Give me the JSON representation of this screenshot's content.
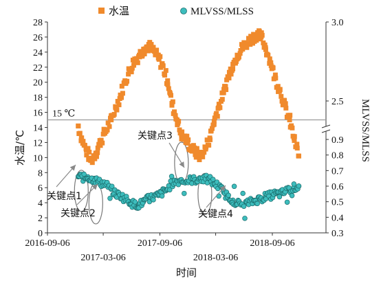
{
  "chart_data": {
    "type": "scatter",
    "xlabel": "时间",
    "x_ticks": [
      "2016-09-06",
      "2017-03-06",
      "2017-09-06",
      "2018-03-06",
      "2018-09-06"
    ],
    "y_left": {
      "label": "水温/℃",
      "range": [
        0,
        28
      ],
      "ticks": [
        "0",
        "2",
        "4",
        "6",
        "8",
        "10",
        "12",
        "14",
        "16",
        "18",
        "20",
        "22",
        "24",
        "26",
        "28"
      ]
    },
    "y_right": {
      "label": "MLVSS/MLSS",
      "broken_axis": true,
      "lower_ticks": [
        "0.3",
        "0.4",
        "0.5",
        "0.6",
        "0.7",
        "0.8",
        "0.9"
      ],
      "upper_ticks": [
        "2.5",
        "3.0"
      ]
    },
    "reference_line": {
      "label": "15 ℃",
      "value": 15
    },
    "legend": [
      {
        "name": "水温",
        "marker": "square",
        "color": "#F08A2C"
      },
      {
        "name": "MLVSS/MLSS",
        "marker": "circle",
        "color": "#3DBDBD"
      }
    ],
    "annotations": [
      {
        "label": "关键点1",
        "x": "2016-12-25",
        "y": 0.57
      },
      {
        "label": "关键点2",
        "x": "2017-02-10",
        "y": 0.49
      },
      {
        "label": "关键点3",
        "x": "2017-11-15",
        "y": 0.75
      },
      {
        "label": "关键点4",
        "x": "2018-01-30",
        "y": 0.55
      }
    ],
    "series": [
      {
        "name": "水温",
        "x": [
          "2016-12-15",
          "2016-12-25",
          "2017-01-10",
          "2017-01-25",
          "2017-02-10",
          "2017-02-25",
          "2017-03-15",
          "2017-04-01",
          "2017-04-15",
          "2017-05-01",
          "2017-05-15",
          "2017-06-01",
          "2017-06-15",
          "2017-07-01",
          "2017-07-15",
          "2017-08-01",
          "2017-08-15",
          "2017-09-01",
          "2017-09-15",
          "2017-10-01",
          "2017-10-15",
          "2017-11-01",
          "2017-11-15",
          "2017-12-01",
          "2017-12-15",
          "2018-01-01",
          "2018-01-15",
          "2018-02-01",
          "2018-02-15",
          "2018-03-01",
          "2018-03-15",
          "2018-04-01",
          "2018-04-15",
          "2018-05-01",
          "2018-05-15",
          "2018-06-01",
          "2018-06-15",
          "2018-07-01",
          "2018-07-15",
          "2018-08-01",
          "2018-08-15",
          "2018-09-01",
          "2018-09-15",
          "2018-10-01",
          "2018-10-15",
          "2018-11-01",
          "2018-11-15",
          "2018-12-01"
        ],
        "values": [
          14.2,
          12.6,
          11.0,
          9.6,
          10.6,
          12.1,
          13.6,
          15.0,
          16.6,
          18.2,
          20.0,
          21.6,
          22.8,
          23.6,
          24.4,
          24.8,
          24.2,
          23.2,
          22.2,
          20.2,
          17.2,
          15.0,
          13.0,
          12.3,
          11.4,
          10.6,
          10.2,
          11.2,
          12.6,
          14.8,
          16.6,
          18.6,
          20.6,
          22.4,
          23.6,
          24.6,
          25.2,
          25.8,
          26.3,
          26.0,
          24.6,
          22.6,
          20.6,
          19.0,
          17.0,
          15.0,
          12.6,
          10.2
        ]
      },
      {
        "name": "MLVSS/MLSS",
        "x": [
          "2016-12-15",
          "2016-12-25",
          "2017-01-05",
          "2017-01-15",
          "2017-01-25",
          "2017-02-05",
          "2017-02-15",
          "2017-02-25",
          "2017-03-05",
          "2017-03-15",
          "2017-04-01",
          "2017-04-15",
          "2017-05-01",
          "2017-05-15",
          "2017-06-01",
          "2017-06-15",
          "2017-07-01",
          "2017-07-15",
          "2017-08-01",
          "2017-08-15",
          "2017-09-01",
          "2017-09-15",
          "2017-10-01",
          "2017-10-15",
          "2017-11-01",
          "2017-11-15",
          "2017-12-01",
          "2017-12-15",
          "2018-01-01",
          "2018-01-15",
          "2018-02-01",
          "2018-02-15",
          "2018-03-01",
          "2018-03-15",
          "2018-04-01",
          "2018-04-15",
          "2018-05-01",
          "2018-05-15",
          "2018-06-01",
          "2018-06-15",
          "2018-07-01",
          "2018-07-15",
          "2018-08-01",
          "2018-08-15",
          "2018-09-01",
          "2018-09-15",
          "2018-10-01",
          "2018-10-15",
          "2018-11-01",
          "2018-11-15",
          "2018-12-01"
        ],
        "values": [
          0.66,
          0.66,
          0.65,
          0.66,
          0.64,
          0.65,
          0.63,
          0.62,
          0.62,
          0.61,
          0.58,
          0.55,
          0.54,
          0.52,
          0.5,
          0.48,
          0.48,
          0.5,
          0.52,
          0.53,
          0.54,
          0.56,
          0.58,
          0.62,
          0.63,
          0.64,
          0.63,
          0.64,
          0.64,
          0.65,
          0.64,
          0.64,
          0.62,
          0.6,
          0.56,
          0.53,
          0.51,
          0.49,
          0.48,
          0.49,
          0.5,
          0.51,
          0.52,
          0.53,
          0.54,
          0.55,
          0.55,
          0.56,
          0.58,
          0.59,
          0.6
        ]
      }
    ]
  }
}
